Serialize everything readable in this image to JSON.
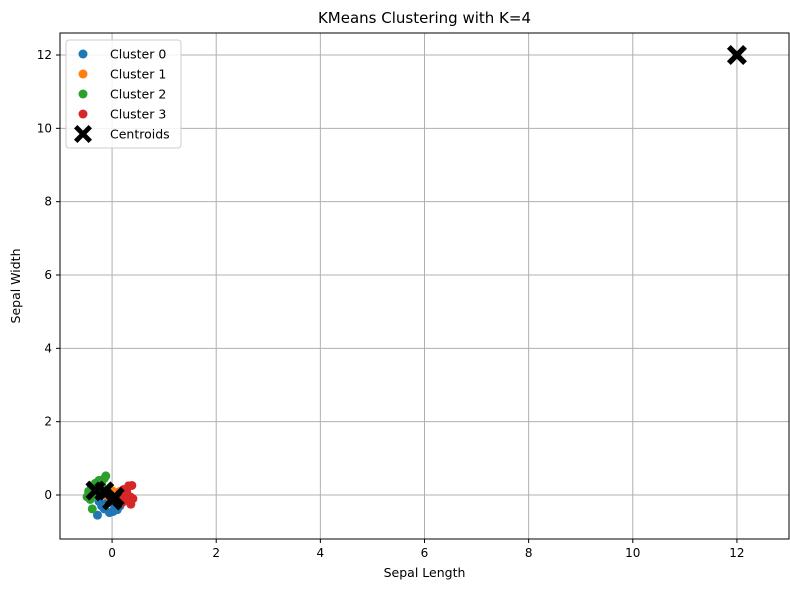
{
  "chart_data": {
    "type": "scatter",
    "title": "KMeans Clustering with K=4",
    "xlabel": "Sepal Length",
    "ylabel": "Sepal Width",
    "xlim": [
      -1.0,
      13.0
    ],
    "ylim": [
      -1.2,
      12.6
    ],
    "xticks": [
      0,
      2,
      4,
      6,
      8,
      10,
      12
    ],
    "yticks": [
      0,
      2,
      4,
      6,
      8,
      10,
      12
    ],
    "grid": true,
    "legend_position": "top-left",
    "series": [
      {
        "name": "Cluster 0",
        "color": "#1f77b4",
        "marker": "circle",
        "points": [
          [
            -0.28,
            -0.55
          ],
          [
            -0.05,
            -0.48
          ],
          [
            0.02,
            -0.45
          ],
          [
            -0.15,
            -0.38
          ],
          [
            -0.2,
            -0.3
          ],
          [
            0.05,
            -0.32
          ],
          [
            -0.1,
            -0.22
          ],
          [
            0.08,
            -0.25
          ],
          [
            -0.25,
            -0.18
          ],
          [
            0.1,
            -0.4
          ],
          [
            -0.02,
            -0.15
          ],
          [
            0.15,
            -0.3
          ]
        ]
      },
      {
        "name": "Cluster 1",
        "color": "#ff7f0e",
        "marker": "circle",
        "points": [
          [
            -0.1,
            0.05
          ],
          [
            0.05,
            0.08
          ],
          [
            0.12,
            -0.02
          ],
          [
            -0.05,
            -0.05
          ],
          [
            0.18,
            0.05
          ],
          [
            0.0,
            0.12
          ],
          [
            0.08,
            -0.1
          ],
          [
            -0.15,
            0.0
          ],
          [
            0.15,
            0.1
          ],
          [
            0.02,
            -0.02
          ]
        ]
      },
      {
        "name": "Cluster 2",
        "color": "#2ca02c",
        "marker": "circle",
        "points": [
          [
            -0.12,
            0.52
          ],
          [
            -0.15,
            0.45
          ],
          [
            -0.25,
            0.4
          ],
          [
            -0.32,
            0.32
          ],
          [
            -0.4,
            0.25
          ],
          [
            -0.45,
            0.1
          ],
          [
            -0.48,
            -0.05
          ],
          [
            -0.42,
            -0.12
          ],
          [
            -0.38,
            -0.38
          ],
          [
            -0.3,
            0.15
          ],
          [
            -0.2,
            0.3
          ],
          [
            -0.35,
            0.0
          ],
          [
            -0.25,
            0.05
          ],
          [
            -0.18,
            0.18
          ]
        ]
      },
      {
        "name": "Cluster 3",
        "color": "#d62728",
        "marker": "circle",
        "points": [
          [
            0.38,
            0.26
          ],
          [
            0.32,
            0.25
          ],
          [
            0.28,
            0.1
          ],
          [
            0.22,
            0.15
          ],
          [
            0.15,
            0.05
          ],
          [
            0.35,
            -0.05
          ],
          [
            0.3,
            -0.15
          ],
          [
            0.36,
            -0.25
          ],
          [
            0.2,
            -0.2
          ],
          [
            0.1,
            -0.1
          ],
          [
            0.25,
            0.0
          ],
          [
            0.4,
            -0.1
          ]
        ]
      },
      {
        "name": "Centroids",
        "color": "#000000",
        "marker": "X",
        "points": [
          [
            -0.32,
            0.12
          ],
          [
            -0.15,
            0.1
          ],
          [
            0.0,
            -0.15
          ],
          [
            0.05,
            -0.05
          ],
          [
            12.0,
            12.0
          ]
        ]
      }
    ]
  }
}
